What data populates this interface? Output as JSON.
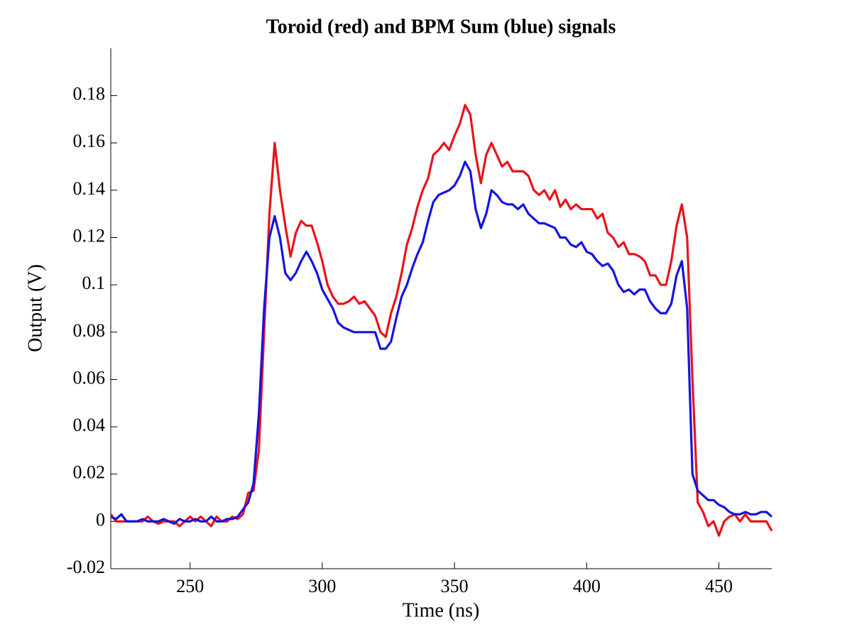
{
  "chart_data": {
    "type": "line",
    "title": "Toroid (red) and BPM Sum (blue) signals",
    "xlabel": "Time (ns)",
    "ylabel": "Output (V)",
    "x": [
      220,
      222,
      224,
      226,
      228,
      230,
      232,
      234,
      236,
      238,
      240,
      242,
      244,
      246,
      248,
      250,
      252,
      254,
      256,
      258,
      260,
      262,
      264,
      266,
      268,
      270,
      272,
      274,
      276,
      278,
      280,
      282,
      284,
      286,
      288,
      290,
      292,
      294,
      296,
      298,
      300,
      302,
      304,
      306,
      308,
      310,
      312,
      314,
      316,
      318,
      320,
      322,
      324,
      326,
      328,
      330,
      332,
      334,
      336,
      338,
      340,
      342,
      344,
      346,
      348,
      350,
      352,
      354,
      356,
      358,
      360,
      362,
      364,
      366,
      368,
      370,
      372,
      374,
      376,
      378,
      380,
      382,
      384,
      386,
      388,
      390,
      392,
      394,
      396,
      398,
      400,
      402,
      404,
      406,
      408,
      410,
      412,
      414,
      416,
      418,
      420,
      422,
      424,
      426,
      428,
      430,
      432,
      434,
      436,
      438,
      440,
      442,
      444,
      446,
      448,
      450,
      452,
      454,
      456,
      458,
      460,
      462,
      464,
      466,
      468,
      470
    ],
    "series": [
      {
        "name": "Toroid",
        "color": "#e8141a",
        "values": [
          0.003,
          0,
          0,
          0,
          0,
          0,
          0,
          0.002,
          0,
          -0.001,
          0,
          0,
          0,
          -0.002,
          0,
          0.002,
          0,
          0.002,
          0,
          -0.002,
          0.002,
          0,
          0,
          0.002,
          0.001,
          0.003,
          0.012,
          0.013,
          0.03,
          0.08,
          0.13,
          0.16,
          0.14,
          0.125,
          0.112,
          0.122,
          0.127,
          0.125,
          0.125,
          0.118,
          0.11,
          0.1,
          0.095,
          0.092,
          0.092,
          0.093,
          0.095,
          0.092,
          0.093,
          0.09,
          0.087,
          0.08,
          0.078,
          0.088,
          0.095,
          0.105,
          0.117,
          0.124,
          0.133,
          0.14,
          0.145,
          0.155,
          0.157,
          0.16,
          0.157,
          0.163,
          0.168,
          0.176,
          0.172,
          0.155,
          0.143,
          0.155,
          0.16,
          0.155,
          0.15,
          0.152,
          0.148,
          0.148,
          0.148,
          0.146,
          0.14,
          0.138,
          0.14,
          0.136,
          0.14,
          0.133,
          0.136,
          0.132,
          0.134,
          0.132,
          0.132,
          0.132,
          0.128,
          0.13,
          0.122,
          0.12,
          0.116,
          0.118,
          0.113,
          0.113,
          0.112,
          0.11,
          0.104,
          0.104,
          0.1,
          0.1,
          0.11,
          0.125,
          0.134,
          0.12,
          0.06,
          0.008,
          0.004,
          -0.002,
          0,
          -0.006,
          0,
          0.002,
          0.003,
          0,
          0.003,
          0,
          0,
          0,
          0,
          -0.004
        ]
      },
      {
        "name": "BPM Sum",
        "color": "#1414e0",
        "values": [
          0.002,
          0.001,
          0.003,
          0,
          0,
          0,
          0.001,
          0,
          0,
          0,
          0.001,
          0,
          -0.001,
          0.001,
          0,
          0,
          0.001,
          0,
          0,
          0.002,
          0,
          0,
          0.001,
          0.001,
          0.002,
          0.005,
          0.008,
          0.016,
          0.045,
          0.09,
          0.12,
          0.129,
          0.12,
          0.105,
          0.102,
          0.105,
          0.11,
          0.114,
          0.11,
          0.105,
          0.098,
          0.094,
          0.09,
          0.084,
          0.082,
          0.081,
          0.08,
          0.08,
          0.08,
          0.08,
          0.08,
          0.073,
          0.073,
          0.076,
          0.086,
          0.095,
          0.1,
          0.107,
          0.113,
          0.118,
          0.127,
          0.135,
          0.138,
          0.139,
          0.14,
          0.142,
          0.146,
          0.152,
          0.148,
          0.132,
          0.124,
          0.13,
          0.14,
          0.138,
          0.135,
          0.134,
          0.134,
          0.132,
          0.134,
          0.13,
          0.128,
          0.126,
          0.126,
          0.125,
          0.124,
          0.12,
          0.12,
          0.117,
          0.116,
          0.118,
          0.114,
          0.113,
          0.11,
          0.108,
          0.109,
          0.106,
          0.1,
          0.097,
          0.098,
          0.096,
          0.098,
          0.098,
          0.093,
          0.09,
          0.088,
          0.088,
          0.092,
          0.104,
          0.11,
          0.09,
          0.02,
          0.013,
          0.011,
          0.009,
          0.009,
          0.007,
          0.006,
          0.004,
          0.003,
          0.003,
          0.004,
          0.003,
          0.003,
          0.004,
          0.004,
          0.002
        ]
      }
    ],
    "xlim": [
      220,
      470
    ],
    "ylim": [
      -0.02,
      0.2
    ],
    "xticks": [
      250,
      300,
      350,
      400,
      450
    ],
    "yticks": [
      -0.02,
      0,
      0.02,
      0.04,
      0.06,
      0.08,
      0.1,
      0.12,
      0.14,
      0.16,
      0.18
    ]
  }
}
